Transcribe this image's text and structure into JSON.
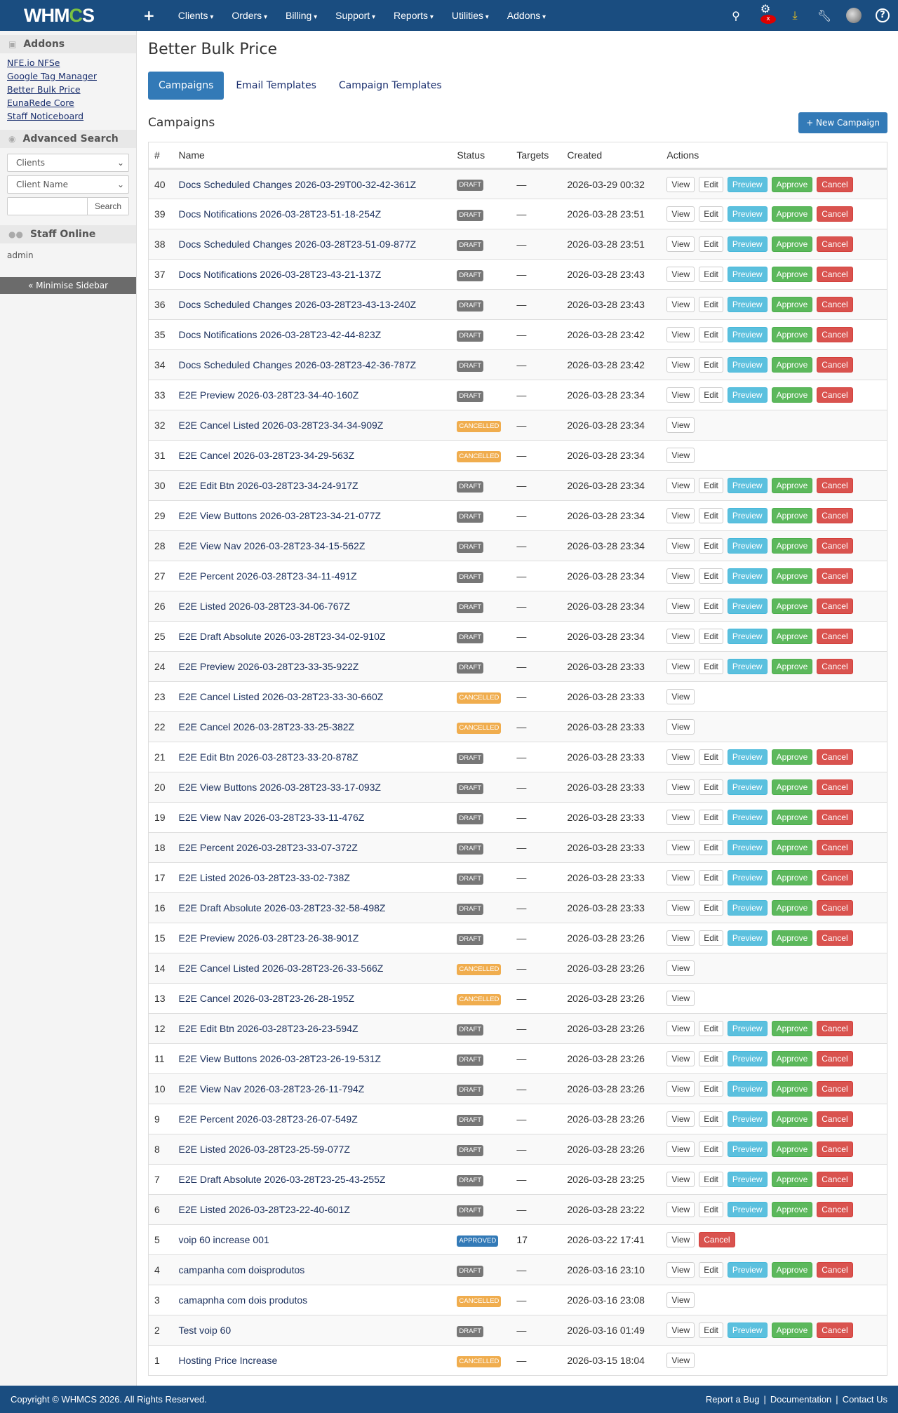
{
  "nav": {
    "logo": "WHMCS",
    "menu": [
      "Clients",
      "Orders",
      "Billing",
      "Support",
      "Reports",
      "Utilities",
      "Addons"
    ],
    "icons": [
      "search-icon",
      "gears-icon",
      "download-icon",
      "wrench-icon",
      "avatar",
      "help-icon"
    ],
    "alert_badge": "x"
  },
  "sidebar": {
    "addons_title": "Addons",
    "addons": [
      "NFE.io NFSe",
      "Google Tag Manager",
      "Better Bulk Price",
      "EunaRede Core",
      "Staff Noticeboard"
    ],
    "search_title": "Advanced Search",
    "select1": "Clients",
    "select2": "Client Name",
    "search_button": "Search",
    "staff_title": "Staff Online",
    "staff": "admin",
    "minimise": "« Minimise Sidebar"
  },
  "page": {
    "title": "Better Bulk Price",
    "tabs": [
      "Campaigns",
      "Email Templates",
      "Campaign Templates"
    ],
    "active_tab": "Campaigns",
    "subtitle": "Campaigns",
    "new_button": "+ New Campaign"
  },
  "colors": {
    "nav": "#1a4d80",
    "primary": "#337ab7",
    "draft": "#777777",
    "cancelled": "#f0ad4e",
    "approved": "#337ab7",
    "preview": "#5bc0de",
    "approve": "#5cb85c",
    "cancel": "#d9534f"
  },
  "table": {
    "headers": [
      "#",
      "Name",
      "Status",
      "Targets",
      "Created",
      "Actions"
    ],
    "rows": [
      {
        "id": "40",
        "name": "Docs Scheduled Changes 2026-03-29T00-32-42-361Z",
        "status": "DRAFT",
        "targets": "—",
        "created": "2026-03-29 00:32",
        "actions": [
          "View",
          "Edit",
          "Preview",
          "Approve",
          "Cancel"
        ]
      },
      {
        "id": "39",
        "name": "Docs Notifications 2026-03-28T23-51-18-254Z",
        "status": "DRAFT",
        "targets": "—",
        "created": "2026-03-28 23:51",
        "actions": [
          "View",
          "Edit",
          "Preview",
          "Approve",
          "Cancel"
        ]
      },
      {
        "id": "38",
        "name": "Docs Scheduled Changes 2026-03-28T23-51-09-877Z",
        "status": "DRAFT",
        "targets": "—",
        "created": "2026-03-28 23:51",
        "actions": [
          "View",
          "Edit",
          "Preview",
          "Approve",
          "Cancel"
        ]
      },
      {
        "id": "37",
        "name": "Docs Notifications 2026-03-28T23-43-21-137Z",
        "status": "DRAFT",
        "targets": "—",
        "created": "2026-03-28 23:43",
        "actions": [
          "View",
          "Edit",
          "Preview",
          "Approve",
          "Cancel"
        ]
      },
      {
        "id": "36",
        "name": "Docs Scheduled Changes 2026-03-28T23-43-13-240Z",
        "status": "DRAFT",
        "targets": "—",
        "created": "2026-03-28 23:43",
        "actions": [
          "View",
          "Edit",
          "Preview",
          "Approve",
          "Cancel"
        ]
      },
      {
        "id": "35",
        "name": "Docs Notifications 2026-03-28T23-42-44-823Z",
        "status": "DRAFT",
        "targets": "—",
        "created": "2026-03-28 23:42",
        "actions": [
          "View",
          "Edit",
          "Preview",
          "Approve",
          "Cancel"
        ]
      },
      {
        "id": "34",
        "name": "Docs Scheduled Changes 2026-03-28T23-42-36-787Z",
        "status": "DRAFT",
        "targets": "—",
        "created": "2026-03-28 23:42",
        "actions": [
          "View",
          "Edit",
          "Preview",
          "Approve",
          "Cancel"
        ]
      },
      {
        "id": "33",
        "name": "E2E Preview 2026-03-28T23-34-40-160Z",
        "status": "DRAFT",
        "targets": "—",
        "created": "2026-03-28 23:34",
        "actions": [
          "View",
          "Edit",
          "Preview",
          "Approve",
          "Cancel"
        ]
      },
      {
        "id": "32",
        "name": "E2E Cancel Listed 2026-03-28T23-34-34-909Z",
        "status": "CANCELLED",
        "targets": "—",
        "created": "2026-03-28 23:34",
        "actions": [
          "View"
        ]
      },
      {
        "id": "31",
        "name": "E2E Cancel 2026-03-28T23-34-29-563Z",
        "status": "CANCELLED",
        "targets": "—",
        "created": "2026-03-28 23:34",
        "actions": [
          "View"
        ]
      },
      {
        "id": "30",
        "name": "E2E Edit Btn 2026-03-28T23-34-24-917Z",
        "status": "DRAFT",
        "targets": "—",
        "created": "2026-03-28 23:34",
        "actions": [
          "View",
          "Edit",
          "Preview",
          "Approve",
          "Cancel"
        ]
      },
      {
        "id": "29",
        "name": "E2E View Buttons 2026-03-28T23-34-21-077Z",
        "status": "DRAFT",
        "targets": "—",
        "created": "2026-03-28 23:34",
        "actions": [
          "View",
          "Edit",
          "Preview",
          "Approve",
          "Cancel"
        ]
      },
      {
        "id": "28",
        "name": "E2E View Nav 2026-03-28T23-34-15-562Z",
        "status": "DRAFT",
        "targets": "—",
        "created": "2026-03-28 23:34",
        "actions": [
          "View",
          "Edit",
          "Preview",
          "Approve",
          "Cancel"
        ]
      },
      {
        "id": "27",
        "name": "E2E Percent 2026-03-28T23-34-11-491Z",
        "status": "DRAFT",
        "targets": "—",
        "created": "2026-03-28 23:34",
        "actions": [
          "View",
          "Edit",
          "Preview",
          "Approve",
          "Cancel"
        ]
      },
      {
        "id": "26",
        "name": "E2E Listed 2026-03-28T23-34-06-767Z",
        "status": "DRAFT",
        "targets": "—",
        "created": "2026-03-28 23:34",
        "actions": [
          "View",
          "Edit",
          "Preview",
          "Approve",
          "Cancel"
        ]
      },
      {
        "id": "25",
        "name": "E2E Draft Absolute 2026-03-28T23-34-02-910Z",
        "status": "DRAFT",
        "targets": "—",
        "created": "2026-03-28 23:34",
        "actions": [
          "View",
          "Edit",
          "Preview",
          "Approve",
          "Cancel"
        ]
      },
      {
        "id": "24",
        "name": "E2E Preview 2026-03-28T23-33-35-922Z",
        "status": "DRAFT",
        "targets": "—",
        "created": "2026-03-28 23:33",
        "actions": [
          "View",
          "Edit",
          "Preview",
          "Approve",
          "Cancel"
        ]
      },
      {
        "id": "23",
        "name": "E2E Cancel Listed 2026-03-28T23-33-30-660Z",
        "status": "CANCELLED",
        "targets": "—",
        "created": "2026-03-28 23:33",
        "actions": [
          "View"
        ]
      },
      {
        "id": "22",
        "name": "E2E Cancel 2026-03-28T23-33-25-382Z",
        "status": "CANCELLED",
        "targets": "—",
        "created": "2026-03-28 23:33",
        "actions": [
          "View"
        ]
      },
      {
        "id": "21",
        "name": "E2E Edit Btn 2026-03-28T23-33-20-878Z",
        "status": "DRAFT",
        "targets": "—",
        "created": "2026-03-28 23:33",
        "actions": [
          "View",
          "Edit",
          "Preview",
          "Approve",
          "Cancel"
        ]
      },
      {
        "id": "20",
        "name": "E2E View Buttons 2026-03-28T23-33-17-093Z",
        "status": "DRAFT",
        "targets": "—",
        "created": "2026-03-28 23:33",
        "actions": [
          "View",
          "Edit",
          "Preview",
          "Approve",
          "Cancel"
        ]
      },
      {
        "id": "19",
        "name": "E2E View Nav 2026-03-28T23-33-11-476Z",
        "status": "DRAFT",
        "targets": "—",
        "created": "2026-03-28 23:33",
        "actions": [
          "View",
          "Edit",
          "Preview",
          "Approve",
          "Cancel"
        ]
      },
      {
        "id": "18",
        "name": "E2E Percent 2026-03-28T23-33-07-372Z",
        "status": "DRAFT",
        "targets": "—",
        "created": "2026-03-28 23:33",
        "actions": [
          "View",
          "Edit",
          "Preview",
          "Approve",
          "Cancel"
        ]
      },
      {
        "id": "17",
        "name": "E2E Listed 2026-03-28T23-33-02-738Z",
        "status": "DRAFT",
        "targets": "—",
        "created": "2026-03-28 23:33",
        "actions": [
          "View",
          "Edit",
          "Preview",
          "Approve",
          "Cancel"
        ]
      },
      {
        "id": "16",
        "name": "E2E Draft Absolute 2026-03-28T23-32-58-498Z",
        "status": "DRAFT",
        "targets": "—",
        "created": "2026-03-28 23:33",
        "actions": [
          "View",
          "Edit",
          "Preview",
          "Approve",
          "Cancel"
        ]
      },
      {
        "id": "15",
        "name": "E2E Preview 2026-03-28T23-26-38-901Z",
        "status": "DRAFT",
        "targets": "—",
        "created": "2026-03-28 23:26",
        "actions": [
          "View",
          "Edit",
          "Preview",
          "Approve",
          "Cancel"
        ]
      },
      {
        "id": "14",
        "name": "E2E Cancel Listed 2026-03-28T23-26-33-566Z",
        "status": "CANCELLED",
        "targets": "—",
        "created": "2026-03-28 23:26",
        "actions": [
          "View"
        ]
      },
      {
        "id": "13",
        "name": "E2E Cancel 2026-03-28T23-26-28-195Z",
        "status": "CANCELLED",
        "targets": "—",
        "created": "2026-03-28 23:26",
        "actions": [
          "View"
        ]
      },
      {
        "id": "12",
        "name": "E2E Edit Btn 2026-03-28T23-26-23-594Z",
        "status": "DRAFT",
        "targets": "—",
        "created": "2026-03-28 23:26",
        "actions": [
          "View",
          "Edit",
          "Preview",
          "Approve",
          "Cancel"
        ]
      },
      {
        "id": "11",
        "name": "E2E View Buttons 2026-03-28T23-26-19-531Z",
        "status": "DRAFT",
        "targets": "—",
        "created": "2026-03-28 23:26",
        "actions": [
          "View",
          "Edit",
          "Preview",
          "Approve",
          "Cancel"
        ]
      },
      {
        "id": "10",
        "name": "E2E View Nav 2026-03-28T23-26-11-794Z",
        "status": "DRAFT",
        "targets": "—",
        "created": "2026-03-28 23:26",
        "actions": [
          "View",
          "Edit",
          "Preview",
          "Approve",
          "Cancel"
        ]
      },
      {
        "id": "9",
        "name": "E2E Percent 2026-03-28T23-26-07-549Z",
        "status": "DRAFT",
        "targets": "—",
        "created": "2026-03-28 23:26",
        "actions": [
          "View",
          "Edit",
          "Preview",
          "Approve",
          "Cancel"
        ]
      },
      {
        "id": "8",
        "name": "E2E Listed 2026-03-28T23-25-59-077Z",
        "status": "DRAFT",
        "targets": "—",
        "created": "2026-03-28 23:26",
        "actions": [
          "View",
          "Edit",
          "Preview",
          "Approve",
          "Cancel"
        ]
      },
      {
        "id": "7",
        "name": "E2E Draft Absolute 2026-03-28T23-25-43-255Z",
        "status": "DRAFT",
        "targets": "—",
        "created": "2026-03-28 23:25",
        "actions": [
          "View",
          "Edit",
          "Preview",
          "Approve",
          "Cancel"
        ]
      },
      {
        "id": "6",
        "name": "E2E Listed 2026-03-28T23-22-40-601Z",
        "status": "DRAFT",
        "targets": "—",
        "created": "2026-03-28 23:22",
        "actions": [
          "View",
          "Edit",
          "Preview",
          "Approve",
          "Cancel"
        ]
      },
      {
        "id": "5",
        "name": "voip 60 increase 001",
        "status": "APPROVED",
        "targets": "17",
        "created": "2026-03-22 17:41",
        "actions": [
          "View",
          "Cancel"
        ]
      },
      {
        "id": "4",
        "name": "campanha com doisprodutos",
        "status": "DRAFT",
        "targets": "—",
        "created": "2026-03-16 23:10",
        "actions": [
          "View",
          "Edit",
          "Preview",
          "Approve",
          "Cancel"
        ]
      },
      {
        "id": "3",
        "name": "camapnha com dois produtos",
        "status": "CANCELLED",
        "targets": "—",
        "created": "2026-03-16 23:08",
        "actions": [
          "View"
        ]
      },
      {
        "id": "2",
        "name": "Test voip 60",
        "status": "DRAFT",
        "targets": "—",
        "created": "2026-03-16 01:49",
        "actions": [
          "View",
          "Edit",
          "Preview",
          "Approve",
          "Cancel"
        ]
      },
      {
        "id": "1",
        "name": "Hosting Price Increase",
        "status": "CANCELLED",
        "targets": "—",
        "created": "2026-03-15 18:04",
        "actions": [
          "View"
        ]
      }
    ]
  },
  "footer": {
    "copyright": "Copyright © WHMCS 2026. All Rights Reserved.",
    "links": [
      "Report a Bug",
      "Documentation",
      "Contact Us"
    ]
  }
}
